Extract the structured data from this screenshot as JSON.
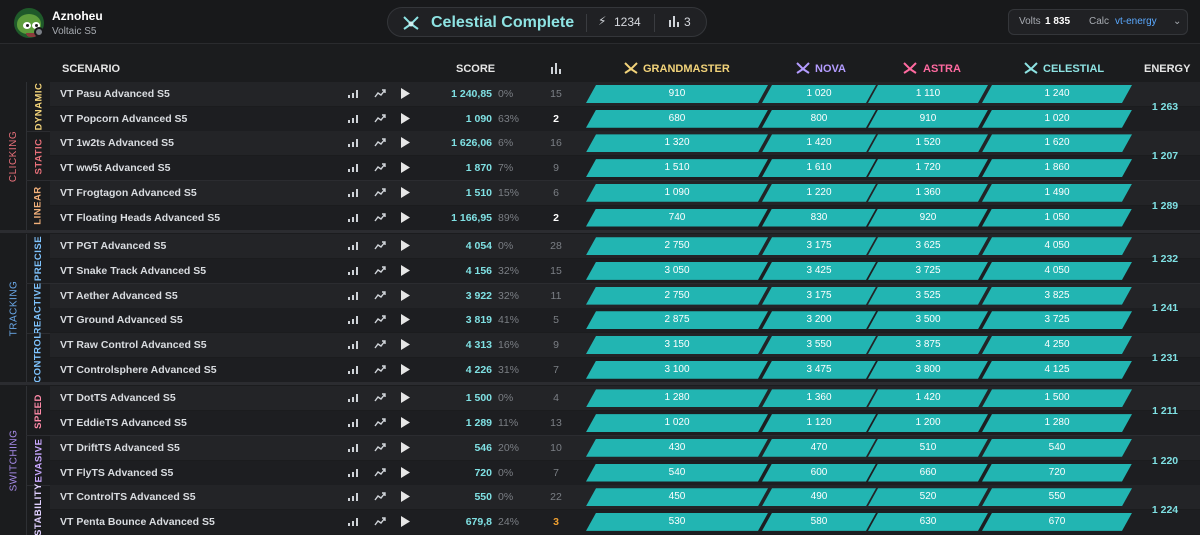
{
  "header": {
    "user_name": "Aznoheu",
    "user_sub": "Voltaic S5",
    "rank_title": "Celestial Complete",
    "bolt_value": "1234",
    "bars_value": "3",
    "volts_label": "Volts",
    "volts_value": "1 835",
    "calc_label": "Calc",
    "calc_value": "vt-energy",
    "chevron": "⌄"
  },
  "columns": {
    "scenario": "SCENARIO",
    "score": "SCORE",
    "grandmaster": "GRANDMASTER",
    "nova": "NOVA",
    "astra": "ASTRA",
    "celestial": "CELESTIAL",
    "energy": "ENERGY"
  },
  "colors": {
    "grandmaster": "#f2d37a",
    "nova": "#b49cff",
    "astra": "#ff6aa0",
    "celestial": "#8ee3e3",
    "bar": "#22b5b2"
  },
  "categories": [
    {
      "name": "CLICKING",
      "color": "#e8707a",
      "subs": [
        {
          "name": "DYNAMIC",
          "color": "#f2d37a",
          "energy": "1 263"
        },
        {
          "name": "STATIC",
          "color": "#e8707a",
          "energy": "1 207"
        },
        {
          "name": "LINEAR",
          "color": "#f2b07a",
          "energy": "1 289"
        }
      ]
    },
    {
      "name": "TRACKING",
      "color": "#6aa8e8",
      "subs": [
        {
          "name": "PRECISE",
          "color": "#7fc4ff",
          "energy": "1 232"
        },
        {
          "name": "REACTIVE",
          "color": "#7fc4ff",
          "energy": "1 241"
        },
        {
          "name": "CONTROL",
          "color": "#7fc4ff",
          "energy": "1 231"
        }
      ]
    },
    {
      "name": "SWITCHING",
      "color": "#a78bea",
      "subs": [
        {
          "name": "SPEED",
          "color": "#ff8aa8",
          "energy": "1 211"
        },
        {
          "name": "EVASIVE",
          "color": "#c9a8ff",
          "energy": "1 220"
        },
        {
          "name": "STABILITY",
          "color": "#e0d0ff",
          "energy": "1 224"
        }
      ]
    }
  ],
  "rows": [
    {
      "name": "VT Pasu Advanced S5",
      "score": "1 240,85",
      "pct": "0%",
      "rank": "15",
      "rank_style": "",
      "gm": "910",
      "nova": "1 020",
      "astra": "1 110",
      "cel": "1 240"
    },
    {
      "name": "VT Popcorn Advanced S5",
      "score": "1 090",
      "pct": "63%",
      "rank": "2",
      "rank_style": "hi",
      "gm": "680",
      "nova": "800",
      "astra": "910",
      "cel": "1 020"
    },
    {
      "name": "VT 1w2ts Advanced S5",
      "score": "1 626,06",
      "pct": "6%",
      "rank": "16",
      "rank_style": "",
      "gm": "1 320",
      "nova": "1 420",
      "astra": "1 520",
      "cel": "1 620"
    },
    {
      "name": "VT ww5t Advanced S5",
      "score": "1 870",
      "pct": "7%",
      "rank": "9",
      "rank_style": "",
      "gm": "1 510",
      "nova": "1 610",
      "astra": "1 720",
      "cel": "1 860"
    },
    {
      "name": "VT Frogtagon Advanced S5",
      "score": "1 510",
      "pct": "15%",
      "rank": "6",
      "rank_style": "",
      "gm": "1 090",
      "nova": "1 220",
      "astra": "1 360",
      "cel": "1 490"
    },
    {
      "name": "VT Floating Heads Advanced S5",
      "score": "1 166,95",
      "pct": "89%",
      "rank": "2",
      "rank_style": "hi",
      "gm": "740",
      "nova": "830",
      "astra": "920",
      "cel": "1 050"
    },
    {
      "name": "VT PGT Advanced S5",
      "score": "4 054",
      "pct": "0%",
      "rank": "28",
      "rank_style": "",
      "gm": "2 750",
      "nova": "3 175",
      "astra": "3 625",
      "cel": "4 050"
    },
    {
      "name": "VT Snake Track Advanced S5",
      "score": "4 156",
      "pct": "32%",
      "rank": "15",
      "rank_style": "",
      "gm": "3 050",
      "nova": "3 425",
      "astra": "3 725",
      "cel": "4 050"
    },
    {
      "name": "VT Aether Advanced S5",
      "score": "3 922",
      "pct": "32%",
      "rank": "11",
      "rank_style": "",
      "gm": "2 750",
      "nova": "3 175",
      "astra": "3 525",
      "cel": "3 825"
    },
    {
      "name": "VT Ground Advanced S5",
      "score": "3 819",
      "pct": "41%",
      "rank": "5",
      "rank_style": "",
      "gm": "2 875",
      "nova": "3 200",
      "astra": "3 500",
      "cel": "3 725"
    },
    {
      "name": "VT Raw Control Advanced S5",
      "score": "4 313",
      "pct": "16%",
      "rank": "9",
      "rank_style": "",
      "gm": "3 150",
      "nova": "3 550",
      "astra": "3 875",
      "cel": "4 250"
    },
    {
      "name": "VT Controlsphere Advanced S5",
      "score": "4 226",
      "pct": "31%",
      "rank": "7",
      "rank_style": "",
      "gm": "3 100",
      "nova": "3 475",
      "astra": "3 800",
      "cel": "4 125"
    },
    {
      "name": "VT DotTS Advanced S5",
      "score": "1 500",
      "pct": "0%",
      "rank": "4",
      "rank_style": "",
      "gm": "1 280",
      "nova": "1 360",
      "astra": "1 420",
      "cel": "1 500"
    },
    {
      "name": "VT EddieTS Advanced S5",
      "score": "1 289",
      "pct": "11%",
      "rank": "13",
      "rank_style": "",
      "gm": "1 020",
      "nova": "1 120",
      "astra": "1 200",
      "cel": "1 280"
    },
    {
      "name": "VT DriftTS Advanced S5",
      "score": "546",
      "pct": "20%",
      "rank": "10",
      "rank_style": "",
      "gm": "430",
      "nova": "470",
      "astra": "510",
      "cel": "540"
    },
    {
      "name": "VT FlyTS Advanced S5",
      "score": "720",
      "pct": "0%",
      "rank": "7",
      "rank_style": "",
      "gm": "540",
      "nova": "600",
      "astra": "660",
      "cel": "720"
    },
    {
      "name": "VT ControlTS Advanced S5",
      "score": "550",
      "pct": "0%",
      "rank": "22",
      "rank_style": "",
      "gm": "450",
      "nova": "490",
      "astra": "520",
      "cel": "550"
    },
    {
      "name": "VT Penta Bounce Advanced S5",
      "score": "679,8",
      "pct": "24%",
      "rank": "3",
      "rank_style": "or",
      "gm": "530",
      "nova": "580",
      "astra": "630",
      "cel": "670"
    }
  ]
}
